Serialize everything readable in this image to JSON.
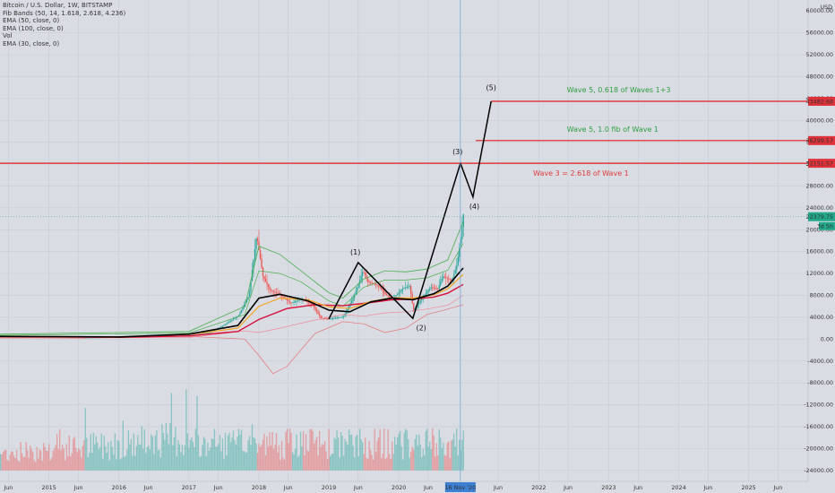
{
  "legend": {
    "symbol": "Bitcoin / U.S. Dollar, 1W, BITSTAMP",
    "fib_bands": "Fib Bands (50, 14, 1.618, 2.618, 4.236)",
    "ema50": "EMA (50, close, 0)",
    "ema100": "EMA (100, close, 0)",
    "vol": "Vol",
    "ema30": "EMA (30, close, 0)"
  },
  "currency": "USD",
  "colors": {
    "background": "#d9dce3",
    "grid": "#c9ccd4",
    "up": "#26a69a",
    "down": "#ef5350",
    "level_line": "#e31b1b",
    "green_text": "#2e9e3f",
    "red_text": "#e03a3a",
    "axis_badge_red": "#e0323a",
    "axis_badge_green": "#22a88a",
    "cursor_line": "#7aa6d6",
    "ema_black": "#000000",
    "ema_orange": "#f5a623",
    "ema_crimson": "#d6103a",
    "ema_pink": "#f08a9a",
    "fib_green": "#4caf50"
  },
  "chart_data": {
    "type": "line",
    "title": "Bitcoin / U.S. Dollar, 1W, BITSTAMP",
    "ylim": [
      -26000,
      62000
    ],
    "y_ticks": [
      "56000.00",
      "52000.00",
      "48000.00",
      "44000.00",
      "40000.00",
      "36000.00",
      "32000.00",
      "28000.00",
      "24000.00",
      "20000.00",
      "16000.00",
      "12000.00",
      "8000.00",
      "4000.00",
      "0.00",
      "-4000.00",
      "-8000.00",
      "-12000.00",
      "-16000.00",
      "-20000.00",
      "-24000.00"
    ],
    "y_top_label": "60000.00",
    "x_ticks": [
      {
        "label": "Jun",
        "t": 2014.42
      },
      {
        "label": "2015",
        "t": 2015.0
      },
      {
        "label": "Jun",
        "t": 2015.42
      },
      {
        "label": "2016",
        "t": 2016.0
      },
      {
        "label": "Jun",
        "t": 2016.42
      },
      {
        "label": "2017",
        "t": 2017.0
      },
      {
        "label": "Jun",
        "t": 2017.42
      },
      {
        "label": "2018",
        "t": 2018.0
      },
      {
        "label": "Jun",
        "t": 2018.42
      },
      {
        "label": "2019",
        "t": 2019.0
      },
      {
        "label": "Jun",
        "t": 2019.42
      },
      {
        "label": "2020",
        "t": 2020.0
      },
      {
        "label": "Jun",
        "t": 2020.42
      },
      {
        "label": "Jun",
        "t": 2021.42
      },
      {
        "label": "2022",
        "t": 2022.0
      },
      {
        "label": "Jun",
        "t": 2022.42
      },
      {
        "label": "2023",
        "t": 2023.0
      },
      {
        "label": "Jun",
        "t": 2023.42
      },
      {
        "label": "2024",
        "t": 2024.0
      },
      {
        "label": "Jun",
        "t": 2024.42
      },
      {
        "label": "2025",
        "t": 2025.0
      },
      {
        "label": "Jun",
        "t": 2025.42
      }
    ],
    "x_range": [
      2014.3,
      2025.85
    ],
    "cursor_label": "16 Nov '20",
    "cursor_t": 2020.88,
    "price_series": [
      {
        "t": 2014.3,
        "v": 500
      },
      {
        "t": 2015.0,
        "v": 280
      },
      {
        "t": 2015.5,
        "v": 250
      },
      {
        "t": 2016.0,
        "v": 420
      },
      {
        "t": 2016.5,
        "v": 650
      },
      {
        "t": 2017.0,
        "v": 950
      },
      {
        "t": 2017.3,
        "v": 1250
      },
      {
        "t": 2017.5,
        "v": 2600
      },
      {
        "t": 2017.7,
        "v": 4300
      },
      {
        "t": 2017.85,
        "v": 8000
      },
      {
        "t": 2017.96,
        "v": 19000
      },
      {
        "t": 2018.05,
        "v": 11500
      },
      {
        "t": 2018.15,
        "v": 9000
      },
      {
        "t": 2018.3,
        "v": 8000
      },
      {
        "t": 2018.45,
        "v": 6600
      },
      {
        "t": 2018.6,
        "v": 7300
      },
      {
        "t": 2018.75,
        "v": 6400
      },
      {
        "t": 2018.88,
        "v": 3800
      },
      {
        "t": 2019.0,
        "v": 3700
      },
      {
        "t": 2019.2,
        "v": 4100
      },
      {
        "t": 2019.35,
        "v": 7800
      },
      {
        "t": 2019.48,
        "v": 12500
      },
      {
        "t": 2019.55,
        "v": 10500
      },
      {
        "t": 2019.7,
        "v": 9800
      },
      {
        "t": 2019.8,
        "v": 8200
      },
      {
        "t": 2019.9,
        "v": 7300
      },
      {
        "t": 2020.05,
        "v": 9300
      },
      {
        "t": 2020.15,
        "v": 9700
      },
      {
        "t": 2020.2,
        "v": 5200
      },
      {
        "t": 2020.3,
        "v": 7100
      },
      {
        "t": 2020.45,
        "v": 9500
      },
      {
        "t": 2020.55,
        "v": 9200
      },
      {
        "t": 2020.62,
        "v": 11500
      },
      {
        "t": 2020.75,
        "v": 10700
      },
      {
        "t": 2020.82,
        "v": 13500
      },
      {
        "t": 2020.88,
        "v": 18500
      },
      {
        "t": 2020.92,
        "v": 23400
      }
    ],
    "series": [
      {
        "name": "EMA (30, close, 0)",
        "color": "#000000",
        "width": 1.6,
        "points": [
          [
            2014.3,
            500
          ],
          [
            2016.0,
            400
          ],
          [
            2017.0,
            900
          ],
          [
            2017.7,
            2500
          ],
          [
            2018.0,
            7500
          ],
          [
            2018.3,
            8200
          ],
          [
            2018.7,
            7000
          ],
          [
            2019.0,
            5300
          ],
          [
            2019.3,
            5000
          ],
          [
            2019.6,
            6800
          ],
          [
            2019.9,
            7500
          ],
          [
            2020.2,
            7200
          ],
          [
            2020.5,
            8300
          ],
          [
            2020.7,
            9700
          ],
          [
            2020.92,
            13000
          ]
        ]
      },
      {
        "name": "EMA (50, close, 0)",
        "color": "#f5a623",
        "width": 1.2,
        "points": [
          [
            2014.3,
            480
          ],
          [
            2016.0,
            380
          ],
          [
            2017.0,
            850
          ],
          [
            2017.7,
            2000
          ],
          [
            2018.0,
            6000
          ],
          [
            2018.3,
            7500
          ],
          [
            2018.7,
            7200
          ],
          [
            2019.0,
            5900
          ],
          [
            2019.3,
            5600
          ],
          [
            2019.6,
            6900
          ],
          [
            2019.9,
            7600
          ],
          [
            2020.2,
            7500
          ],
          [
            2020.5,
            8100
          ],
          [
            2020.7,
            9200
          ],
          [
            2020.92,
            11800
          ]
        ]
      },
      {
        "name": "EMA (100, close, 0)",
        "color": "#d6103a",
        "width": 1.4,
        "points": [
          [
            2014.3,
            500
          ],
          [
            2016.0,
            330
          ],
          [
            2017.0,
            600
          ],
          [
            2017.7,
            1400
          ],
          [
            2018.0,
            3600
          ],
          [
            2018.4,
            5600
          ],
          [
            2018.8,
            6300
          ],
          [
            2019.2,
            6100
          ],
          [
            2019.6,
            6700
          ],
          [
            2019.9,
            7200
          ],
          [
            2020.2,
            7300
          ],
          [
            2020.5,
            7700
          ],
          [
            2020.7,
            8400
          ],
          [
            2020.92,
            10000
          ]
        ]
      },
      {
        "name": "Fib upper",
        "color": "#4caf50",
        "width": 0.8,
        "points": [
          [
            2014.3,
            900
          ],
          [
            2017.0,
            1400
          ],
          [
            2017.8,
            6000
          ],
          [
            2018.0,
            17000
          ],
          [
            2018.3,
            15500
          ],
          [
            2018.6,
            12500
          ],
          [
            2019.0,
            8500
          ],
          [
            2019.2,
            7500
          ],
          [
            2019.5,
            11000
          ],
          [
            2019.8,
            12500
          ],
          [
            2020.1,
            12300
          ],
          [
            2020.4,
            12800
          ],
          [
            2020.7,
            14500
          ],
          [
            2020.92,
            21500
          ]
        ]
      },
      {
        "name": "Fib mid",
        "color": "#4caf50",
        "width": 0.7,
        "points": [
          [
            2014.3,
            700
          ],
          [
            2017.0,
            1100
          ],
          [
            2017.8,
            4500
          ],
          [
            2018.0,
            12500
          ],
          [
            2018.3,
            12000
          ],
          [
            2018.6,
            10500
          ],
          [
            2019.0,
            7000
          ],
          [
            2019.2,
            6000
          ],
          [
            2019.5,
            9500
          ],
          [
            2019.8,
            10800
          ],
          [
            2020.1,
            10800
          ],
          [
            2020.4,
            11200
          ],
          [
            2020.7,
            12600
          ],
          [
            2020.92,
            17500
          ]
        ]
      },
      {
        "name": "Fib lower",
        "color": "#e57373",
        "width": 0.7,
        "points": [
          [
            2014.3,
            300
          ],
          [
            2017.0,
            500
          ],
          [
            2017.8,
            0
          ],
          [
            2018.0,
            -3000
          ],
          [
            2018.2,
            -6300
          ],
          [
            2018.4,
            -5000
          ],
          [
            2018.8,
            1000
          ],
          [
            2019.2,
            3200
          ],
          [
            2019.5,
            2800
          ],
          [
            2019.8,
            1200
          ],
          [
            2020.1,
            2000
          ],
          [
            2020.4,
            4500
          ],
          [
            2020.7,
            5500
          ],
          [
            2020.92,
            6300
          ]
        ]
      },
      {
        "name": "Fib lower2",
        "color": "#f08a9a",
        "width": 0.7,
        "points": [
          [
            2014.3,
            200
          ],
          [
            2017.0,
            300
          ],
          [
            2017.8,
            1500
          ],
          [
            2018.0,
            1200
          ],
          [
            2018.3,
            2000
          ],
          [
            2018.8,
            3500
          ],
          [
            2019.2,
            4500
          ],
          [
            2019.5,
            4200
          ],
          [
            2019.8,
            4800
          ],
          [
            2020.1,
            5000
          ],
          [
            2020.4,
            5500
          ],
          [
            2020.7,
            6200
          ],
          [
            2020.92,
            8000
          ]
        ]
      }
    ],
    "wave_path": [
      [
        2019.0,
        3700
      ],
      [
        2019.42,
        14000
      ],
      [
        2020.2,
        3800
      ],
      [
        2020.88,
        32151
      ],
      [
        2021.06,
        26000
      ],
      [
        2021.32,
        43482
      ]
    ],
    "wave_labels": [
      {
        "label": "(1)",
        "t": 2019.38,
        "v": 15500
      },
      {
        "label": "(2)",
        "t": 2020.32,
        "v": 1600
      },
      {
        "label": "(3)",
        "t": 2020.84,
        "v": 33800
      },
      {
        "label": "(4)",
        "t": 2021.08,
        "v": 23800
      },
      {
        "label": "(5)",
        "t": 2021.32,
        "v": 45500
      }
    ],
    "levels": [
      {
        "value": 43482.68,
        "label": "43482.68",
        "t_start": 2021.32,
        "annotation": "Wave 5, 0.618 of Waves 1+3",
        "ann_color": "#2e9e3f",
        "ann_t": 2022.4,
        "ann_dv": 1600
      },
      {
        "value": 36299.57,
        "label": "36299.57",
        "t_start": 2021.1,
        "annotation": "Wave 5, 1.0 fib of Wave 1",
        "ann_color": "#2e9e3f",
        "ann_t": 2022.4,
        "ann_dv": 1600
      },
      {
        "value": 32151.57,
        "label": "32151.57",
        "t_start": 2014.3,
        "annotation": "Wave 3 = 2.618 of Wave 1",
        "ann_color": "#e03a3a",
        "ann_t": 2021.92,
        "ann_dv": -2300
      }
    ],
    "current_price": {
      "value": 22379.75,
      "label": "22379.75",
      "countdown": "3d 5h"
    },
    "volume_baseline": -24000,
    "volume_max_height": 14000
  }
}
